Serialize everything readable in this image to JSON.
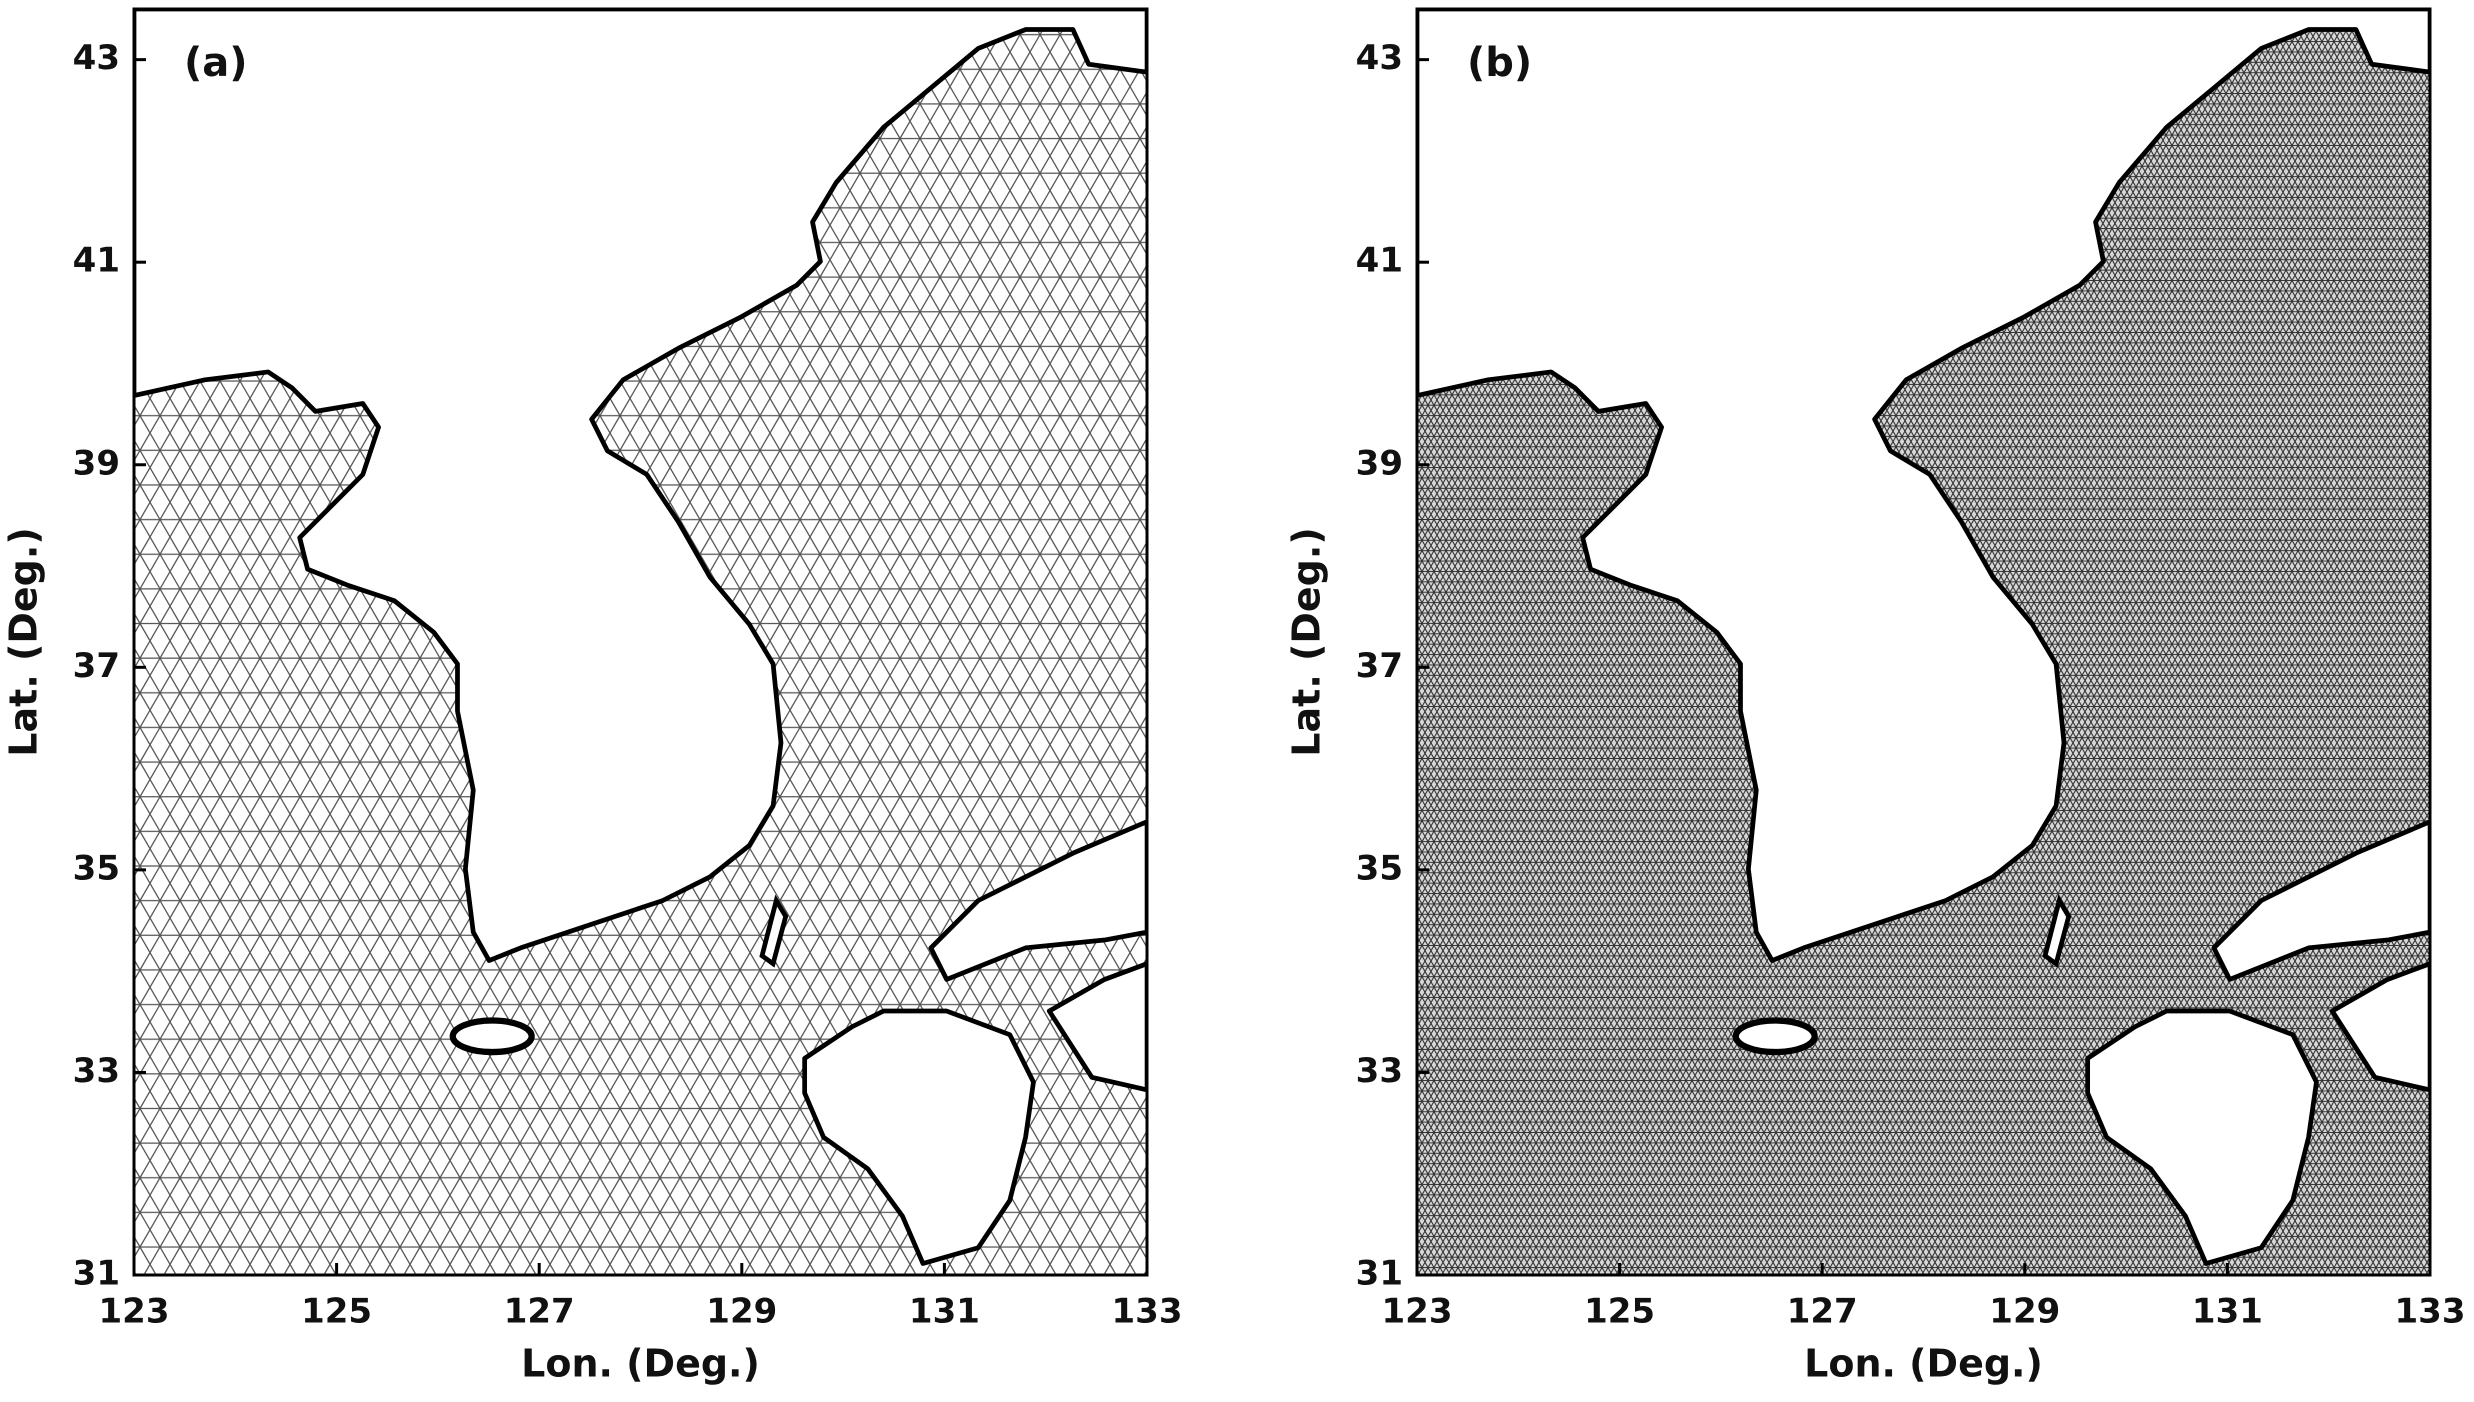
{
  "chart_data": [
    {
      "type": "map",
      "label": "(a)",
      "xlabel": "Lon. (Deg.)",
      "ylabel": "Lat. (Deg.)",
      "xlim": [
        123,
        133
      ],
      "ylim": [
        31,
        43.5
      ],
      "xticks": [
        123,
        125,
        127,
        129,
        131,
        133
      ],
      "yticks": [
        31,
        33,
        35,
        37,
        39,
        41,
        43
      ]
    },
    {
      "type": "map",
      "label": "(b)",
      "xlabel": "Lon. (Deg.)",
      "ylabel": "Lat. (Deg.)",
      "xlim": [
        123,
        133
      ],
      "ylim": [
        31,
        43.5
      ],
      "xticks": [
        123,
        125,
        127,
        129,
        131,
        133
      ],
      "yticks": [
        31,
        33,
        35,
        37,
        39,
        41,
        43
      ]
    }
  ]
}
